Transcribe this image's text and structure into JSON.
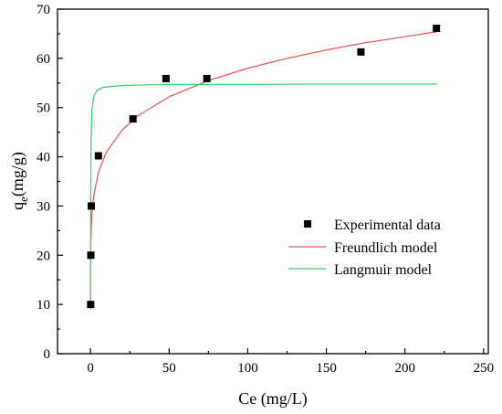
{
  "chart_data": {
    "type": "scatter",
    "xlabel": "Ce (mg/L)",
    "ylabel": {
      "symbol": "q",
      "subscript": "e",
      "unit": "(mg/g)"
    },
    "xlim": [
      -21,
      253
    ],
    "ylim": [
      0,
      70
    ],
    "xticks": [
      0,
      50,
      100,
      150,
      200,
      250
    ],
    "yticks": [
      0,
      10,
      20,
      30,
      40,
      50,
      60,
      70
    ],
    "grid": false,
    "legend_position": "lower-right",
    "series": [
      {
        "name": "Experimental data",
        "type": "scatter",
        "marker": "square",
        "color": "#000000",
        "x": [
          0.1,
          0.2,
          0.5,
          5,
          27,
          48,
          74,
          172,
          220
        ],
        "y": [
          10,
          20,
          30,
          40.2,
          47.7,
          55.9,
          55.9,
          61.3,
          66.1
        ]
      },
      {
        "name": "Freundlich model",
        "type": "line",
        "color": "#e45c5c",
        "x": [
          0.002,
          0.01,
          0.05,
          0.2,
          0.5,
          1,
          2,
          5,
          10,
          20,
          30,
          50,
          75,
          100,
          125,
          150,
          175,
          200,
          220
        ],
        "y": [
          11.2,
          14.3,
          18.3,
          22.5,
          25.9,
          28.8,
          32.0,
          36.8,
          40.9,
          45.4,
          48.3,
          52.2,
          55.5,
          58.0,
          60.0,
          61.7,
          63.2,
          64.4,
          65.4
        ]
      },
      {
        "name": "Langmuir model",
        "type": "line",
        "color": "#3dd16b",
        "x": [
          0.02,
          0.05,
          0.1,
          0.2,
          0.4,
          0.7,
          1,
          2,
          4,
          8,
          20,
          50,
          100,
          150,
          220
        ],
        "y": [
          9.1,
          18.3,
          27.4,
          36.5,
          43.8,
          48.0,
          49.8,
          52.2,
          53.5,
          54.1,
          54.5,
          54.7,
          54.7,
          54.8,
          54.8
        ]
      }
    ]
  }
}
